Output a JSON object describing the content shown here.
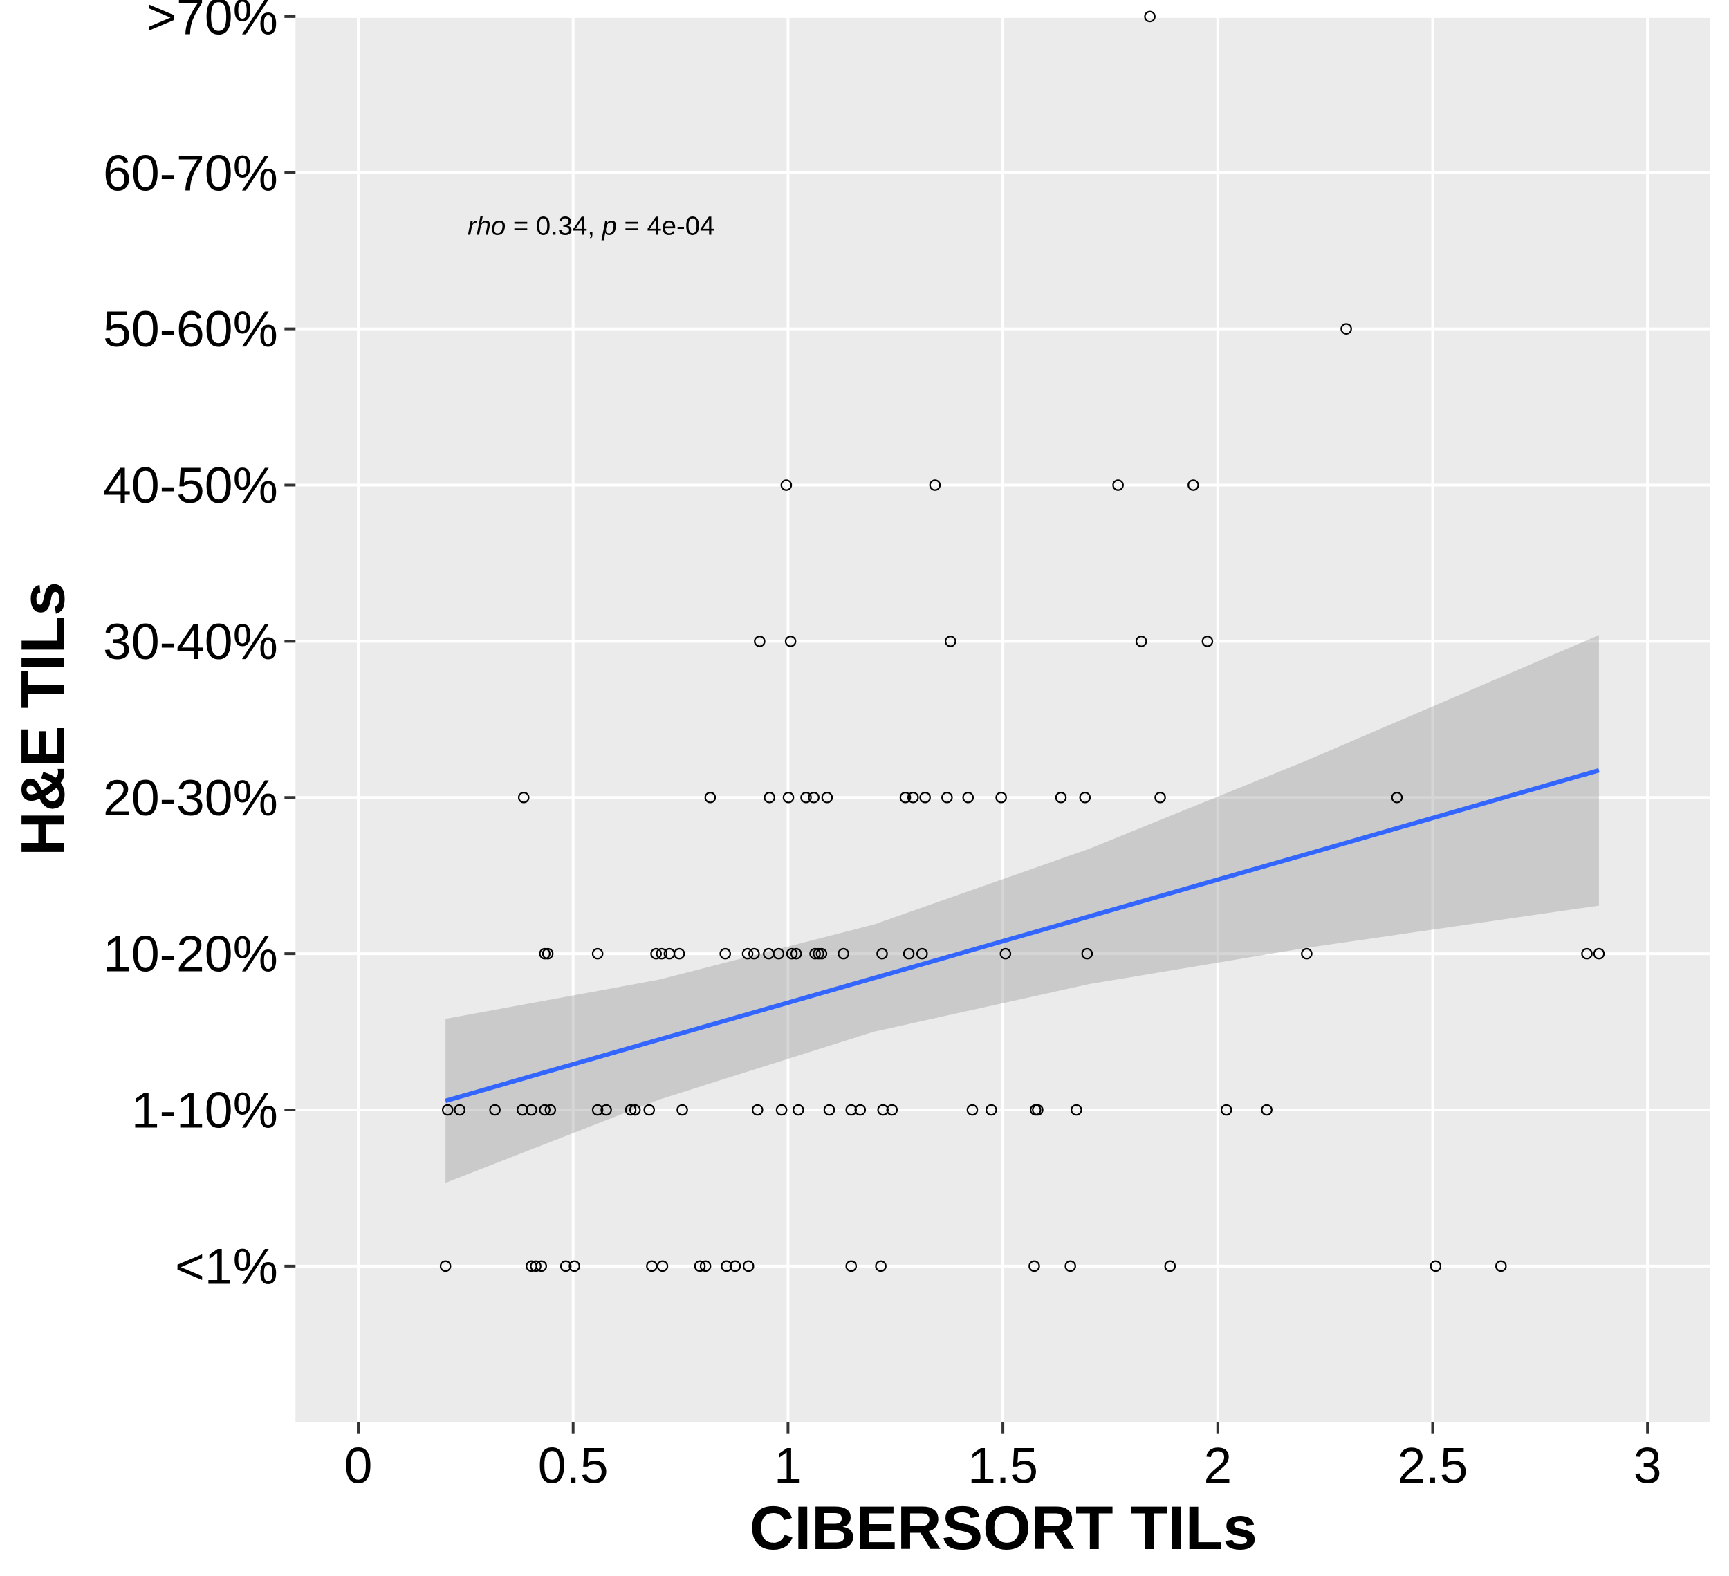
{
  "chart_data": {
    "type": "scatter",
    "x_label": "CIBERSORT TILs",
    "y_label": "H&E TILs",
    "annotation": [
      "rho",
      " = 0.34, ",
      "p",
      " = 4e-04"
    ],
    "xlim": [
      -0.146,
      3.146
    ],
    "ylim": [
      0,
      9
    ],
    "xticks": [
      0,
      0.5,
      1,
      1.5,
      2,
      2.5,
      3
    ],
    "yticks": [
      {
        "value": 1,
        "label": "<1%"
      },
      {
        "value": 2,
        "label": "1-10%"
      },
      {
        "value": 3,
        "label": "10-20%"
      },
      {
        "value": 4,
        "label": "20-30%"
      },
      {
        "value": 5,
        "label": "30-40%"
      },
      {
        "value": 6,
        "label": "40-50%"
      },
      {
        "value": 7,
        "label": "50-60%"
      },
      {
        "value": 8,
        "label": "60-70%"
      },
      {
        "value": 9,
        "label": ">70%"
      }
    ],
    "grid": true,
    "point_color": "#000000",
    "x": [
      0.203,
      0.403,
      0.413,
      0.426,
      0.483,
      0.503,
      0.683,
      0.708,
      0.795,
      0.808,
      0.857,
      0.877,
      0.908,
      1.147,
      1.216,
      1.573,
      1.657,
      1.889,
      2.507,
      2.659,
      0.208,
      0.236,
      0.318,
      0.382,
      0.403,
      0.434,
      0.447,
      0.557,
      0.577,
      0.634,
      0.644,
      0.677,
      0.754,
      0.929,
      0.985,
      1.024,
      1.096,
      1.147,
      1.168,
      1.221,
      1.242,
      1.429,
      1.473,
      1.576,
      1.581,
      1.671,
      2.02,
      2.114,
      0.434,
      0.441,
      0.557,
      0.693,
      0.706,
      0.724,
      0.747,
      0.854,
      0.906,
      0.921,
      0.955,
      0.978,
      1.009,
      1.019,
      1.063,
      1.071,
      1.078,
      1.129,
      1.219,
      1.281,
      1.312,
      1.506,
      1.696,
      2.207,
      2.859,
      2.887,
      0.385,
      0.819,
      0.957,
      1.001,
      1.042,
      1.06,
      1.091,
      1.273,
      1.291,
      1.319,
      1.37,
      1.419,
      1.496,
      1.635,
      1.691,
      1.866,
      2.417,
      0.934,
      1.006,
      1.378,
      1.822,
      1.976,
      0.996,
      1.342,
      1.768,
      1.943,
      2.299,
      1.842
    ],
    "y": [
      1,
      1,
      1,
      1,
      1,
      1,
      1,
      1,
      1,
      1,
      1,
      1,
      1,
      1,
      1,
      1,
      1,
      1,
      1,
      1,
      2,
      2,
      2,
      2,
      2,
      2,
      2,
      2,
      2,
      2,
      2,
      2,
      2,
      2,
      2,
      2,
      2,
      2,
      2,
      2,
      2,
      2,
      2,
      2,
      2,
      2,
      2,
      2,
      3,
      3,
      3,
      3,
      3,
      3,
      3,
      3,
      3,
      3,
      3,
      3,
      3,
      3,
      3,
      3,
      3,
      3,
      3,
      3,
      3,
      3,
      3,
      3,
      3,
      3,
      4,
      4,
      4,
      4,
      4,
      4,
      4,
      4,
      4,
      4,
      4,
      4,
      4,
      4,
      4,
      4,
      4,
      5,
      5,
      5,
      5,
      5,
      6,
      6,
      6,
      6,
      7,
      9
    ],
    "fit": {
      "color": "#3366ff",
      "band_color": "#999999",
      "x": [
        0.203,
        0.7,
        1.2,
        1.7,
        2.2,
        2.887
      ],
      "y": [
        2.058,
        2.45,
        2.844,
        3.238,
        3.632,
        4.174
      ],
      "lower": [
        1.533,
        2.066,
        2.501,
        2.805,
        3.035,
        3.308
      ],
      "upper": [
        2.583,
        2.834,
        3.187,
        3.671,
        4.229,
        5.04
      ]
    }
  }
}
